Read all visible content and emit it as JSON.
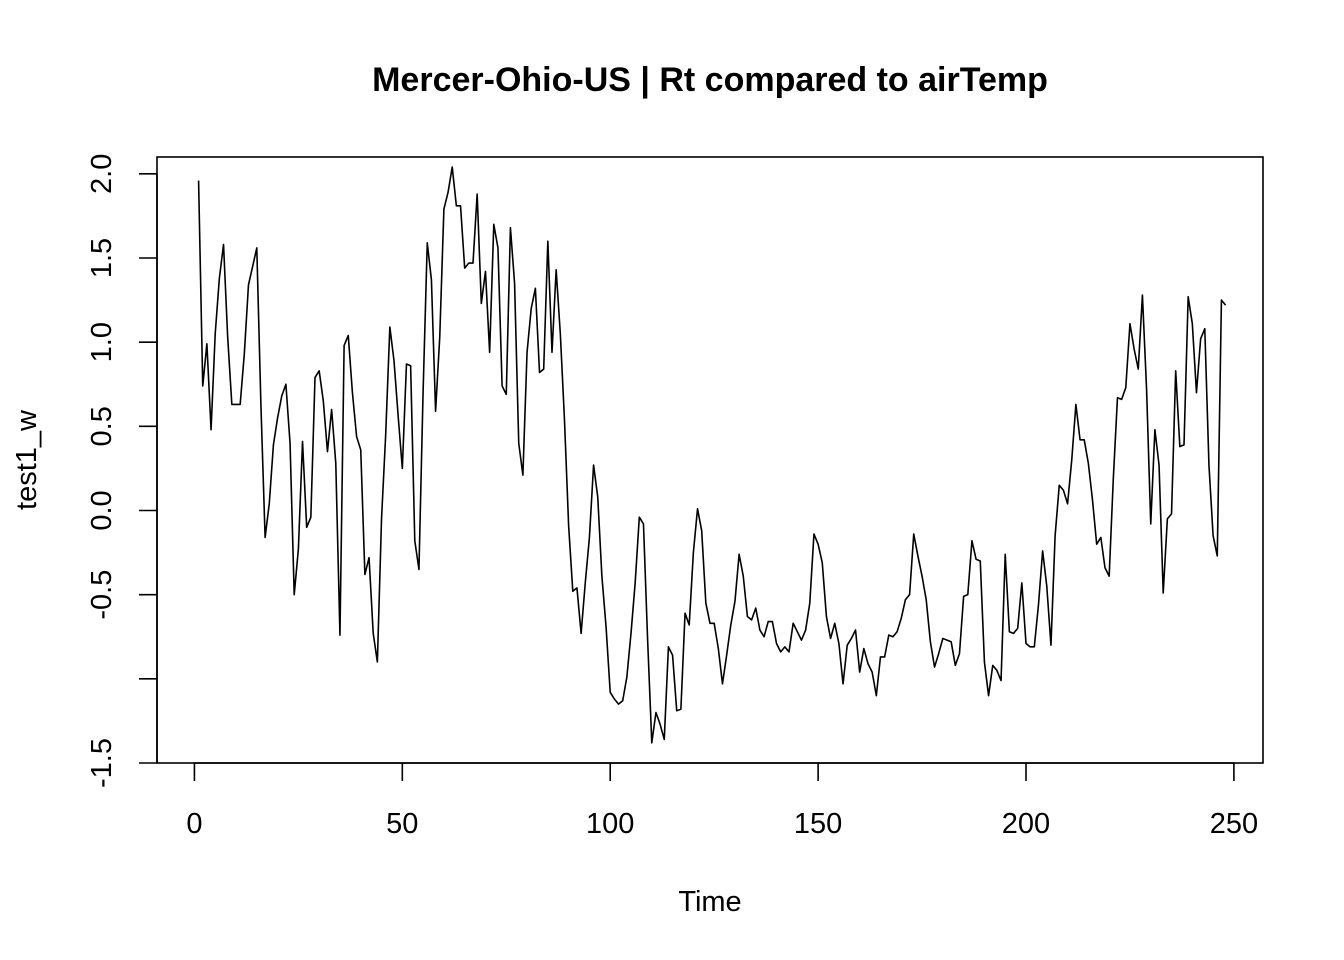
{
  "chart_data": {
    "type": "line",
    "title": "Mercer-Ohio-US | Rt compared to airTemp",
    "xlabel": "Time",
    "ylabel": "test1_w",
    "xlim": [
      -9,
      257
    ],
    "ylim": [
      -1.5,
      2.1
    ],
    "xticks": [
      0,
      50,
      100,
      150,
      200,
      250
    ],
    "yticks": [
      -1.5,
      -1.0,
      -0.5,
      0.0,
      0.5,
      1.0,
      1.5,
      2.0
    ],
    "ytick_labels": [
      "-1.5",
      "",
      "-0.5",
      "0.0",
      "0.5",
      "1.0",
      "1.5",
      "2.0"
    ],
    "xtick_labels": [
      "0",
      "50",
      "100",
      "150",
      "200",
      "250"
    ],
    "grid": false,
    "line_color": "#000000",
    "series": [
      {
        "x_start": 1,
        "values": [
          1.96,
          0.74,
          0.99,
          0.48,
          1.05,
          1.38,
          1.58,
          1.03,
          0.63,
          0.63,
          0.63,
          0.93,
          1.34,
          1.45,
          1.56,
          0.62,
          -0.16,
          0.04,
          0.39,
          0.55,
          0.68,
          0.75,
          0.4,
          -0.5,
          -0.23,
          0.41,
          -0.1,
          -0.04,
          0.79,
          0.83,
          0.65,
          0.35,
          0.6,
          0.28,
          -0.74,
          0.98,
          1.04,
          0.7,
          0.44,
          0.36,
          -0.38,
          -0.28,
          -0.73,
          -0.9,
          -0.05,
          0.45,
          1.09,
          0.89,
          0.56,
          0.25,
          0.87,
          0.86,
          -0.18,
          -0.35,
          0.71,
          1.59,
          1.37,
          0.59,
          1.03,
          1.79,
          1.89,
          2.04,
          1.81,
          1.81,
          1.44,
          1.47,
          1.47,
          1.88,
          1.23,
          1.42,
          0.94,
          1.7,
          1.56,
          0.74,
          0.69,
          1.68,
          1.35,
          0.4,
          0.21,
          0.94,
          1.2,
          1.32,
          0.82,
          0.84,
          1.6,
          0.94,
          1.43,
          1.05,
          0.54,
          -0.09,
          -0.48,
          -0.46,
          -0.73,
          -0.43,
          -0.16,
          0.27,
          0.08,
          -0.39,
          -0.69,
          -1.08,
          -1.12,
          -1.15,
          -1.13,
          -0.99,
          -0.73,
          -0.43,
          -0.04,
          -0.08,
          -0.77,
          -1.38,
          -1.2,
          -1.27,
          -1.36,
          -0.81,
          -0.86,
          -1.19,
          -1.18,
          -0.61,
          -0.68,
          -0.25,
          0.01,
          -0.12,
          -0.55,
          -0.67,
          -0.67,
          -0.82,
          -1.03,
          -0.86,
          -0.68,
          -0.54,
          -0.26,
          -0.39,
          -0.63,
          -0.65,
          -0.58,
          -0.71,
          -0.75,
          -0.66,
          -0.66,
          -0.79,
          -0.84,
          -0.81,
          -0.84,
          -0.67,
          -0.72,
          -0.77,
          -0.71,
          -0.55,
          -0.14,
          -0.2,
          -0.31,
          -0.63,
          -0.76,
          -0.67,
          -0.79,
          -1.03,
          -0.8,
          -0.76,
          -0.71,
          -0.96,
          -0.82,
          -0.91,
          -0.96,
          -1.1,
          -0.87,
          -0.87,
          -0.74,
          -0.75,
          -0.72,
          -0.64,
          -0.53,
          -0.5,
          -0.14,
          -0.27,
          -0.39,
          -0.53,
          -0.78,
          -0.93,
          -0.85,
          -0.76,
          -0.77,
          -0.78,
          -0.92,
          -0.85,
          -0.51,
          -0.5,
          -0.18,
          -0.29,
          -0.3,
          -0.9,
          -1.1,
          -0.92,
          -0.95,
          -1.01,
          -0.26,
          -0.72,
          -0.73,
          -0.7,
          -0.43,
          -0.79,
          -0.81,
          -0.81,
          -0.56,
          -0.24,
          -0.45,
          -0.8,
          -0.15,
          0.15,
          0.12,
          0.04,
          0.3,
          0.63,
          0.42,
          0.42,
          0.28,
          0.06,
          -0.2,
          -0.16,
          -0.34,
          -0.39,
          0.19,
          0.67,
          0.66,
          0.73,
          1.11,
          0.96,
          0.84,
          1.28,
          0.72,
          -0.08,
          0.48,
          0.27,
          -0.49,
          -0.05,
          -0.02,
          0.83,
          0.38,
          0.39,
          1.27,
          1.11,
          0.7,
          1.02,
          1.08,
          0.27,
          -0.15,
          -0.27,
          1.25,
          1.22
        ]
      }
    ]
  }
}
